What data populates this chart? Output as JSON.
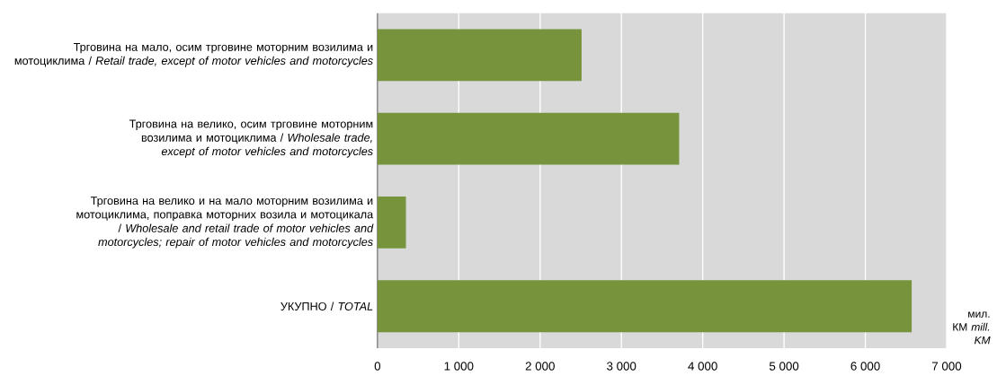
{
  "chart_data": {
    "type": "bar",
    "orientation": "horizontal",
    "categories": [
      "Трговина на мало, осим трговине моторним возилима и мотоциклима / *Retail trade, except of motor vehicles and motorcycles*",
      "Трговина на велико, осим трговине моторним возилима и мотоциклима / *Wholesale trade, except of motor vehicles and motorcycles*",
      "Трговина на велико и на мало моторним возилима и мотоциклима, поправка моторних возила и мотоцикала / *Wholesale and retail trade of motor vehicles and motorcycles; repair of motor vehicles and motorcycles*",
      "УКУПНО / *TOTAL*"
    ],
    "values": [
      2510,
      3710,
      350,
      6570
    ],
    "color": "#77933c",
    "xlabel": "мил. КМ *mill. KM*",
    "xlim": [
      0,
      7000
    ],
    "xticks": [
      0,
      {
        "value": 1000,
        "label": "1 000"
      },
      {
        "value": 2000,
        "label": "2 000"
      },
      {
        "value": 3000,
        "label": "3 000"
      },
      {
        "value": 4000,
        "label": "4 000"
      },
      {
        "value": 5000,
        "label": "5 000"
      },
      {
        "value": 6000,
        "label": "6 000"
      },
      {
        "value": 7000,
        "label": "7 000"
      }
    ],
    "grid": "x"
  }
}
